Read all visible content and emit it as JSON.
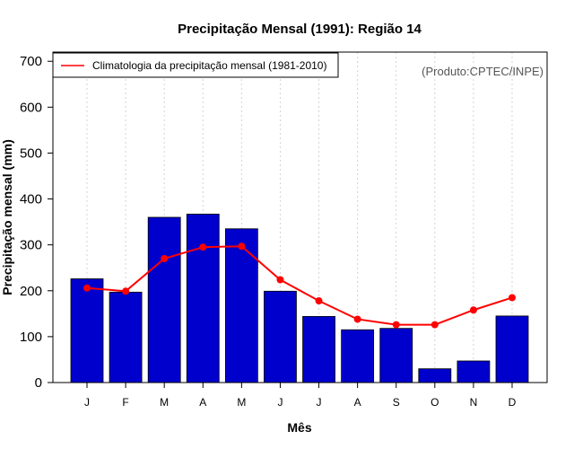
{
  "chart_data": {
    "type": "bar",
    "title": "Precipitação Mensal (1991): Região 14",
    "xlabel": "Mês",
    "ylabel": "Precipitação mensal (mm)",
    "ylim": [
      0,
      720
    ],
    "yticks": [
      0,
      100,
      200,
      300,
      400,
      500,
      600,
      700
    ],
    "grid": "vertical dotted",
    "categories": [
      "J",
      "F",
      "M",
      "A",
      "M",
      "J",
      "J",
      "A",
      "S",
      "O",
      "N",
      "D"
    ],
    "series": [
      {
        "name": "Precipitação mensal (1991)",
        "type": "bar",
        "color": "#0000cd",
        "values": [
          226,
          197,
          360,
          367,
          335,
          199,
          144,
          115,
          118,
          30,
          47,
          145
        ]
      },
      {
        "name": "Climatologia da precipitação mensal (1981-2010)",
        "type": "line",
        "color": "#ff0000",
        "values": [
          206,
          199,
          270,
          295,
          297,
          224,
          178,
          138,
          126,
          126,
          158,
          185
        ]
      }
    ],
    "legend": {
      "position": "top-left",
      "entries": [
        "Climatologia da precipitação mensal (1981-2010)"
      ]
    },
    "credit": "(Produto:CPTEC/INPE)"
  }
}
